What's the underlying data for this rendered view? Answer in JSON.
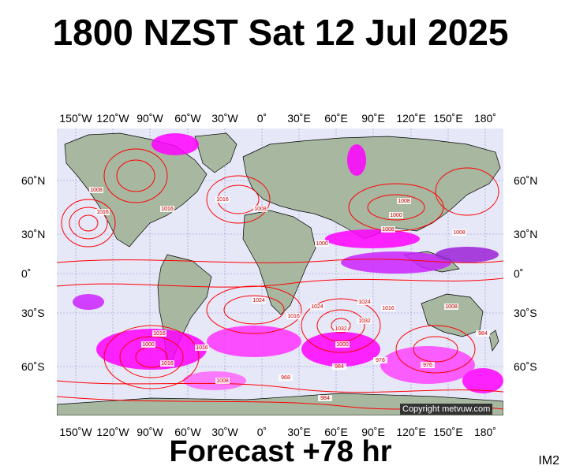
{
  "header": {
    "title": "1800 NZST Sat 12 Jul 2025"
  },
  "footer": {
    "forecast": "Forecast +78 hr",
    "code": "IM2"
  },
  "map": {
    "copyright": "Copyright metvuw.com",
    "lon_ticks": [
      "150˚W",
      "120˚W",
      "90˚W",
      "60˚W",
      "30˚W",
      "0˚",
      "30˚E",
      "60˚E",
      "90˚E",
      "120˚E",
      "150˚E",
      "180˚"
    ],
    "lat_ticks": [
      "60˚N",
      "30˚N",
      "0˚",
      "30˚S",
      "60˚S"
    ],
    "isobar_labels": [
      "1008",
      "1016",
      "1016",
      "1016",
      "1024",
      "1016",
      "1016",
      "1008",
      "1000",
      "1008",
      "1008",
      "1000",
      "1008",
      "1024",
      "1032",
      "1024",
      "1016",
      "1008",
      "1000",
      "1016",
      "1032",
      "1000",
      "984",
      "976",
      "968",
      "984",
      "976",
      "1008",
      "984",
      "1016"
    ],
    "colors": {
      "ocean": "#e6e8f8",
      "land": "#a7b7a0",
      "isobar": "#ff0000",
      "precip_magenta": "#ff00ff",
      "precip_purple": "#9b22d6",
      "grid": "#7a7fbe"
    }
  }
}
